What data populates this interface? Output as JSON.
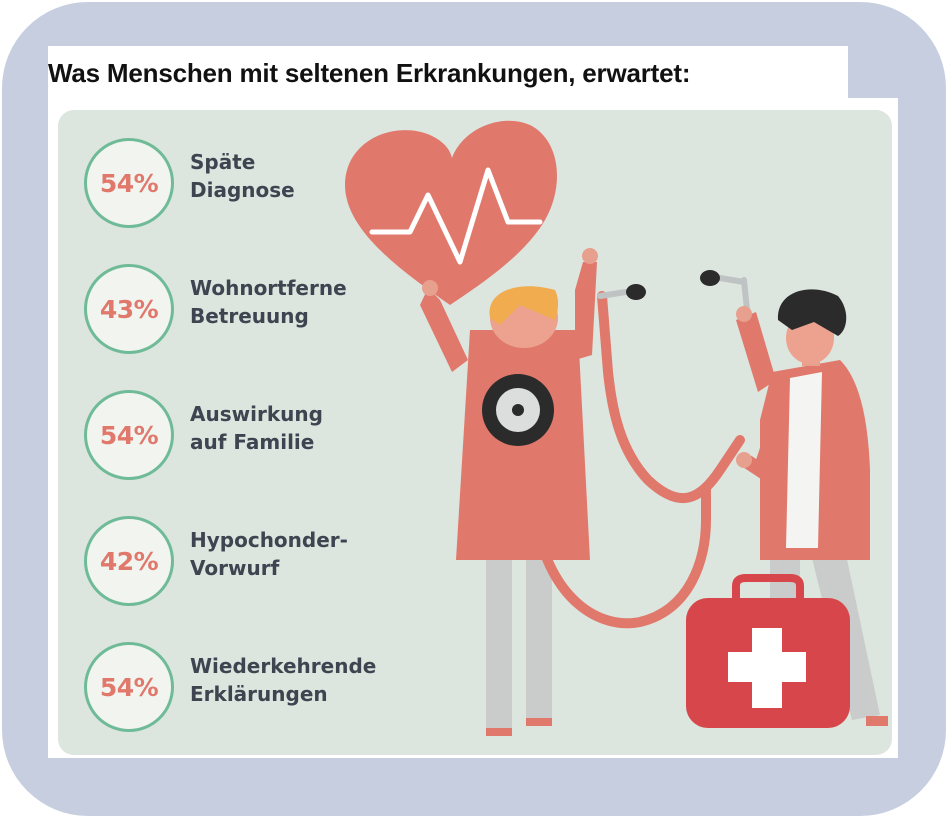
{
  "title": "Was Menschen mit seltenen Erkrankungen, erwartet:",
  "stats": [
    {
      "value": "54%",
      "line1": "Späte",
      "line2": "Diagnose"
    },
    {
      "value": "43%",
      "line1": "Wohnortferne",
      "line2": "Betreuung"
    },
    {
      "value": "54%",
      "line1": "Auswirkung",
      "line2": "auf Familie"
    },
    {
      "value": "42%",
      "line1": "Hypochonder-",
      "line2": "Vorwurf"
    },
    {
      "value": "54%",
      "line1": "Wiederkehrende",
      "line2": "Erklärungen"
    }
  ],
  "colors": {
    "accent": "#e0786c",
    "ring": "#6fbb98",
    "background": "#c6cedf",
    "panel": "#dde5df",
    "text": "#3e4550"
  },
  "icons": [
    "heart-pulse-icon",
    "stethoscope-icon",
    "patient-figure",
    "doctor-figure",
    "first-aid-kit-icon"
  ]
}
